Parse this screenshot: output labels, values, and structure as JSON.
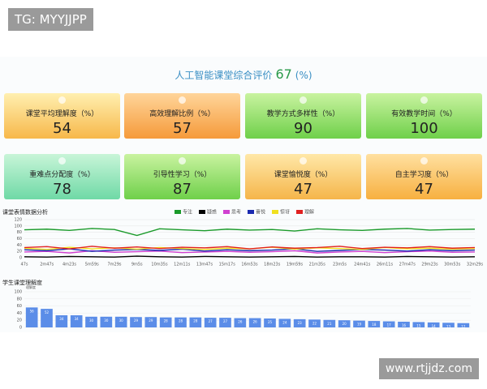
{
  "header": {
    "watermark": "TG: MYYJJPP",
    "title": "人工智能课堂综合评价",
    "score": 67,
    "unit": "(%)"
  },
  "cards": [
    {
      "label": "课堂平均理解度（%）",
      "value": 54
    },
    {
      "label": "高效理解比例（%）",
      "value": 57
    },
    {
      "label": "教学方式多样性（%）",
      "value": 90
    },
    {
      "label": "有效教学时间（%）",
      "value": 100
    },
    {
      "label": "重难点分配度（%）",
      "value": 78
    },
    {
      "label": "引导性学习（%）",
      "value": 87
    },
    {
      "label": "课堂愉悦度（%）",
      "value": 47
    },
    {
      "label": "自主学习度（%）",
      "value": 47
    }
  ],
  "chart_data": [
    {
      "type": "line",
      "title": "课堂表情数据分析",
      "categories": [
        "47s",
        "2m47s",
        "4m23s",
        "5m59s",
        "7m29s",
        "9m5s",
        "10m35s",
        "12m11s",
        "13m47s",
        "15m17s",
        "16m53s",
        "18m23s",
        "19m59s",
        "21m35s",
        "23m5s",
        "24m41s",
        "26m11s",
        "27m47s",
        "29m23s",
        "30m53s",
        "32m29s"
      ],
      "series": [
        {
          "name": "专注",
          "color": "#1a9a2a",
          "values": [
            88,
            90,
            86,
            92,
            89,
            70,
            91,
            88,
            85,
            90,
            87,
            89,
            84,
            91,
            88,
            86,
            90,
            92,
            87,
            89,
            90
          ]
        },
        {
          "name": "疑惑",
          "color": "#000000",
          "values": [
            3,
            2,
            4,
            3,
            2,
            5,
            3,
            2,
            4,
            3,
            2,
            3,
            4,
            2,
            3,
            3,
            2,
            4,
            3,
            2,
            3
          ]
        },
        {
          "name": "思考",
          "color": "#d040d0",
          "values": [
            18,
            20,
            15,
            22,
            17,
            19,
            21,
            16,
            18,
            20,
            17,
            19,
            22,
            15,
            18,
            20,
            16,
            19,
            21,
            17,
            18
          ]
        },
        {
          "name": "喜悦",
          "color": "#1a2ab0",
          "values": [
            25,
            22,
            28,
            20,
            24,
            26,
            23,
            27,
            21,
            25,
            22,
            24,
            28,
            20,
            23,
            26,
            24,
            21,
            25,
            22,
            24
          ]
        },
        {
          "name": "惊讶",
          "color": "#f0e020",
          "values": [
            30,
            26,
            33,
            28,
            31,
            27,
            32,
            29,
            26,
            30,
            28,
            33,
            27,
            31,
            29,
            26,
            32,
            28,
            30,
            27,
            29
          ]
        },
        {
          "name": "理解",
          "color": "#e02020",
          "values": [
            32,
            35,
            28,
            36,
            30,
            34,
            29,
            33,
            31,
            35,
            28,
            34,
            30,
            32,
            36,
            29,
            33,
            31,
            35,
            30,
            32
          ]
        }
      ],
      "ylim": [
        0,
        120
      ],
      "yticks": [
        0,
        20,
        40,
        60,
        80,
        100,
        120
      ],
      "grid": true
    },
    {
      "type": "bar",
      "title": "学生课堂理解度",
      "y_label": "理解度",
      "color": "#5b8de8",
      "categories": [
        null,
        null,
        null,
        null,
        null,
        null,
        null,
        null,
        null,
        null,
        null,
        null,
        null,
        null,
        null,
        null,
        null,
        null,
        null,
        null,
        null,
        null,
        null,
        null,
        null,
        null,
        null,
        null,
        null,
        null
      ],
      "values": [
        56,
        52,
        34,
        34,
        30,
        30,
        30,
        29,
        29,
        28,
        28,
        28,
        27,
        27,
        26,
        26,
        25,
        24,
        23,
        22,
        21,
        20,
        19,
        18,
        17,
        16,
        15,
        14,
        13,
        12
      ],
      "ylim": [
        0,
        100
      ],
      "yticks": [
        0,
        20,
        40,
        60,
        80,
        100
      ],
      "grid": true
    }
  ],
  "footer": {
    "watermark": "www.rtjjdz.com"
  }
}
